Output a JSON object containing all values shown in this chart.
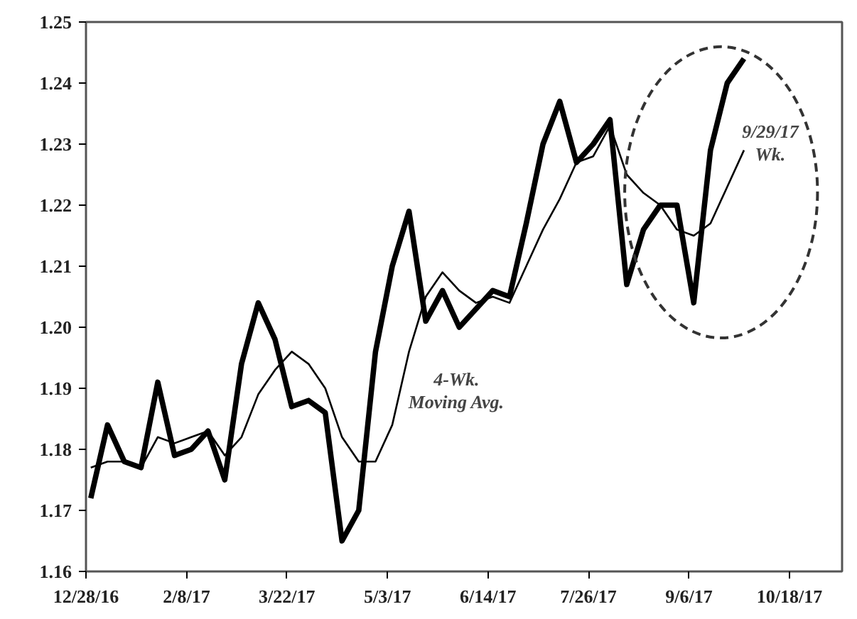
{
  "chart_data": {
    "type": "line",
    "x": [
      "2016-12-30",
      "2017-01-06",
      "2017-01-13",
      "2017-01-20",
      "2017-01-27",
      "2017-02-03",
      "2017-02-10",
      "2017-02-17",
      "2017-02-24",
      "2017-03-03",
      "2017-03-10",
      "2017-03-17",
      "2017-03-24",
      "2017-03-31",
      "2017-04-07",
      "2017-04-14",
      "2017-04-21",
      "2017-04-28",
      "2017-05-05",
      "2017-05-12",
      "2017-05-19",
      "2017-05-26",
      "2017-06-02",
      "2017-06-09",
      "2017-06-16",
      "2017-06-23",
      "2017-06-30",
      "2017-07-07",
      "2017-07-14",
      "2017-07-21",
      "2017-07-28",
      "2017-08-04",
      "2017-08-11",
      "2017-08-18",
      "2017-08-25",
      "2017-09-01",
      "2017-09-08",
      "2017-09-15",
      "2017-09-22",
      "2017-09-29"
    ],
    "series": [
      {
        "color": "#000000",
        "values": [
          1.172,
          1.184,
          1.178,
          1.177,
          1.191,
          1.179,
          1.18,
          1.183,
          1.175,
          1.194,
          1.204,
          1.198,
          1.187,
          1.188,
          1.186,
          1.165,
          1.17,
          1.196,
          1.21,
          1.219,
          1.201,
          1.206,
          1.2,
          1.203,
          1.206,
          1.205,
          1.217,
          1.23,
          1.237,
          1.227,
          1.23,
          1.234,
          1.207,
          1.216,
          1.22,
          1.22,
          1.204,
          1.229,
          1.24,
          1.244
        ]
      },
      {
        "color": "#000000",
        "values": [
          1.177,
          1.178,
          1.178,
          1.177,
          1.182,
          1.181,
          1.182,
          1.183,
          1.179,
          1.182,
          1.189,
          1.193,
          1.196,
          1.194,
          1.19,
          1.182,
          1.178,
          1.178,
          1.184,
          1.196,
          1.205,
          1.209,
          1.206,
          1.204,
          1.205,
          1.204,
          1.21,
          1.216,
          1.221,
          1.227,
          1.228,
          1.233,
          1.225,
          1.222,
          1.22,
          1.216,
          1.215,
          1.217,
          1.223,
          1.229
        ]
      }
    ],
    "xlim": [
      "2016-12-28",
      "2017-11-09"
    ],
    "xticks": [
      {
        "value": "2016-12-28",
        "label": "12/28/16"
      },
      {
        "value": "2017-02-08",
        "label": "2/8/17"
      },
      {
        "value": "2017-03-22",
        "label": "3/22/17"
      },
      {
        "value": "2017-05-03",
        "label": "5/3/17"
      },
      {
        "value": "2017-06-14",
        "label": "6/14/17"
      },
      {
        "value": "2017-07-26",
        "label": "7/26/17"
      },
      {
        "value": "2017-09-06",
        "label": "9/6/17"
      },
      {
        "value": "2017-10-18",
        "label": "10/18/17"
      }
    ],
    "ylim": [
      1.16,
      1.25
    ],
    "yticks": [
      1.16,
      1.17,
      1.18,
      1.19,
      {
        "value": 1.2,
        "label": "1.20"
      },
      1.21,
      1.22,
      1.23,
      1.24,
      1.25
    ],
    "grid": false,
    "marker": "none",
    "line_style": "solid",
    "annotations": [
      "4-Wk.\nMoving Avg.",
      "9/29/17\nWk."
    ]
  }
}
